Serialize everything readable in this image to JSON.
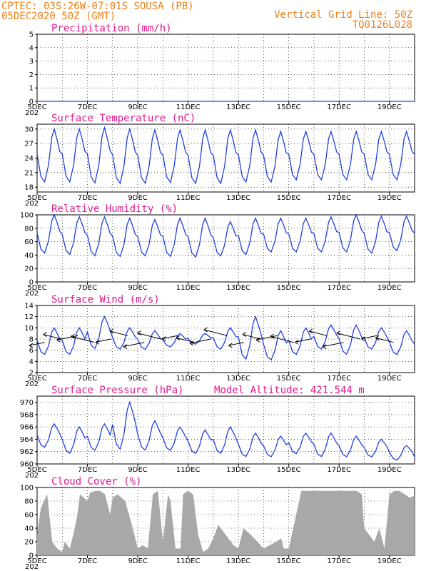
{
  "header": {
    "left_line1": "CPTEC:   03S:26W-07:01S   SOUSA (PB)",
    "left_line2": "05DEC2020 50Z (GMT)",
    "right_line1": "Vertical Grid Line: 50Z",
    "right_line2": "TQ0126L028"
  },
  "colors": {
    "header": "#e8821e",
    "title": "#e0198c",
    "line": "#1f3fe0",
    "cloud": "#a8a8a8",
    "axis": "#000000"
  },
  "x_axis": {
    "labels": [
      "5DEC",
      "7DEC",
      "9DEC",
      "11DEC",
      "13DEC",
      "15DEC",
      "17DEC",
      "19DEC"
    ],
    "year_fragment": "202"
  },
  "chart_data": [
    {
      "id": "precip",
      "type": "line",
      "title": "Precipitation (mm/h)",
      "ylim": [
        0,
        5
      ],
      "yticks": [
        0,
        1,
        2,
        3,
        4,
        5
      ],
      "x_days": [
        0,
        2,
        4,
        6,
        8,
        10,
        12,
        14,
        15
      ],
      "values": [
        0,
        0,
        0,
        0,
        0,
        0,
        0,
        0,
        0
      ]
    },
    {
      "id": "temp",
      "type": "line",
      "title": "Surface Temperature (nC)",
      "ylim": [
        17,
        31
      ],
      "yticks": [
        18,
        21,
        24,
        27,
        30
      ],
      "daily_max": [
        30,
        30,
        30.3,
        30,
        29.8,
        29.8,
        29.8,
        29.8,
        29.8,
        29.5,
        29.5,
        29.5,
        29.5,
        29.5,
        29.5,
        29.5
      ],
      "daily_min": [
        18.5,
        18.5,
        18.3,
        18.2,
        18.2,
        18.4,
        18.2,
        18.2,
        18.5,
        18.5,
        19,
        19,
        19,
        19,
        19,
        19
      ]
    },
    {
      "id": "rh",
      "type": "line",
      "title": "Relative Humidity (%)",
      "ylim": [
        0,
        100
      ],
      "yticks": [
        0,
        20,
        40,
        60,
        80,
        100
      ],
      "daily_max": [
        100,
        97,
        97,
        95,
        93,
        95,
        95,
        90,
        95,
        95,
        95,
        97,
        100,
        98,
        98,
        95
      ],
      "daily_min": [
        40,
        38,
        36,
        35,
        36,
        35,
        34,
        36,
        38,
        42,
        42,
        42,
        42,
        40,
        44,
        46
      ]
    },
    {
      "id": "wind",
      "type": "line",
      "title": "Surface Wind (m/s)",
      "ylim": [
        2,
        14
      ],
      "yticks": [
        2,
        4,
        6,
        8,
        10,
        12,
        14
      ],
      "daily_max": [
        10,
        10,
        12,
        10,
        9.5,
        9,
        9,
        10,
        12,
        9.5,
        10,
        10.5,
        10.5,
        10,
        9.5,
        9.2
      ],
      "daily_min": [
        5,
        5,
        6,
        6,
        6,
        6.5,
        7,
        6,
        4,
        4,
        5,
        6,
        5,
        6,
        5,
        4.5
      ]
    },
    {
      "id": "pres",
      "type": "line",
      "title": "Surface Pressure (hPa)",
      "annotation": "Model Altitude: 421.544 m",
      "ylim": [
        960,
        971
      ],
      "yticks": [
        960,
        962,
        964,
        966,
        968,
        970
      ],
      "daily_max": [
        966.5,
        966,
        966.5,
        970,
        967,
        966,
        965.5,
        966,
        965,
        964.5,
        965,
        965,
        964.5,
        964,
        963,
        962
      ],
      "daily_min": [
        962.5,
        961.5,
        962,
        962,
        962,
        962,
        961.5,
        961.5,
        961,
        961,
        961.5,
        961,
        961,
        961,
        960.5,
        960
      ]
    },
    {
      "id": "cloud",
      "type": "area",
      "title": "Cloud Cover (%)",
      "ylim": [
        0,
        100
      ],
      "yticks": [
        0,
        20,
        40,
        60,
        80,
        100
      ],
      "x_days": [
        0,
        0.15,
        0.4,
        0.6,
        0.8,
        1.0,
        1.1,
        1.3,
        1.5,
        1.6,
        1.7,
        2.0,
        2.1,
        2.3,
        2.5,
        2.7,
        2.9,
        3.0,
        3.2,
        3.5,
        3.8,
        4.0,
        4.2,
        4.4,
        4.6,
        4.8,
        5.0,
        5.2,
        5.3,
        5.5,
        5.7,
        5.8,
        6.0,
        6.2,
        6.4,
        6.6,
        6.8,
        7.0,
        7.2,
        7.4,
        7.6,
        7.8,
        8.0,
        8.2,
        8.5,
        9.0,
        9.5,
        9.7,
        9.8,
        10.0,
        10.5,
        11.0,
        11.5,
        12.0,
        12.5,
        12.7,
        12.9,
        13.0,
        13.2,
        13.4,
        13.6,
        13.8,
        14.0,
        14.2,
        14.4,
        14.6,
        14.8,
        15.0
      ],
      "values": [
        30,
        70,
        90,
        20,
        10,
        5,
        20,
        10,
        40,
        60,
        90,
        80,
        92,
        95,
        95,
        90,
        60,
        85,
        90,
        80,
        40,
        10,
        15,
        10,
        90,
        95,
        20,
        90,
        80,
        10,
        10,
        90,
        95,
        90,
        30,
        5,
        10,
        25,
        45,
        35,
        25,
        15,
        10,
        40,
        30,
        10,
        20,
        25,
        10,
        10,
        95,
        95,
        95,
        95,
        95,
        95,
        90,
        40,
        30,
        20,
        40,
        10,
        90,
        95,
        95,
        90,
        85,
        88
      ]
    }
  ]
}
